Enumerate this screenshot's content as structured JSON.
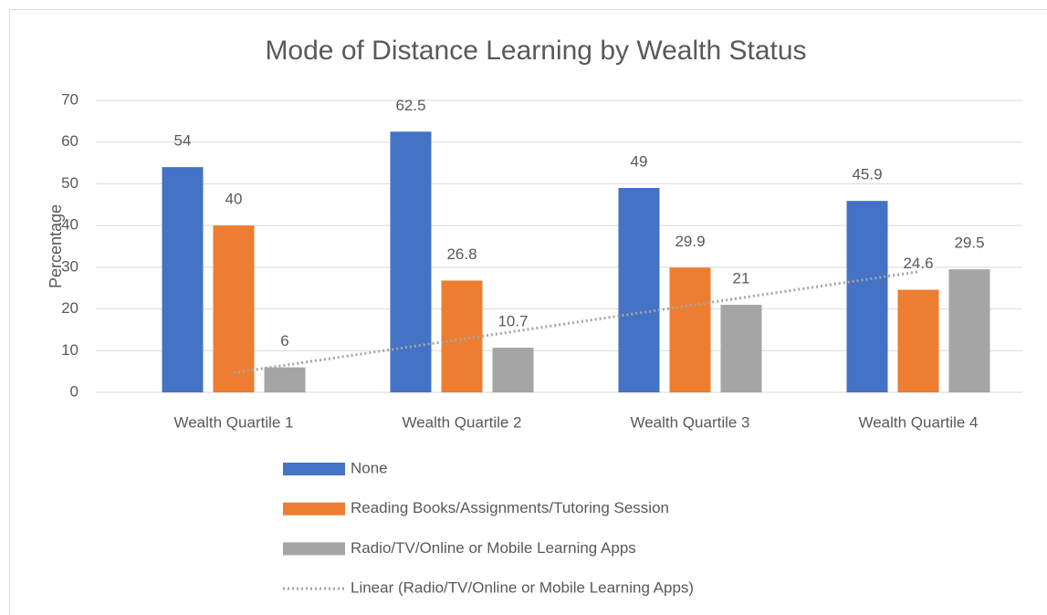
{
  "chart_data": {
    "type": "bar",
    "title": "Mode of Distance Learning by Wealth Status",
    "y_label": "Percentage",
    "categories": [
      "Wealth Quartile 1",
      "Wealth Quartile 2",
      "Wealth Quartile 3",
      "Wealth Quartile 4"
    ],
    "series": [
      {
        "name": "None",
        "color": "#4472c4",
        "values": [
          54,
          62.5,
          49,
          45.9
        ]
      },
      {
        "name": "Reading Books/Assignments/Tutoring Session",
        "color": "#ed7d31",
        "values": [
          40,
          26.8,
          29.9,
          24.6
        ]
      },
      {
        "name": "Radio/TV/Online or Mobile Learning Apps",
        "color": "#a5a5a5",
        "values": [
          6,
          10.7,
          21,
          29.5
        ],
        "trendline": {
          "type": "linear",
          "name": "Linear (Radio/TV/Online or Mobile Learning Apps)"
        }
      }
    ],
    "ylim": [
      0,
      70
    ],
    "yticks": [
      0,
      10,
      20,
      30,
      40,
      50,
      60,
      70
    ],
    "grid": true,
    "legend": "bottom"
  }
}
